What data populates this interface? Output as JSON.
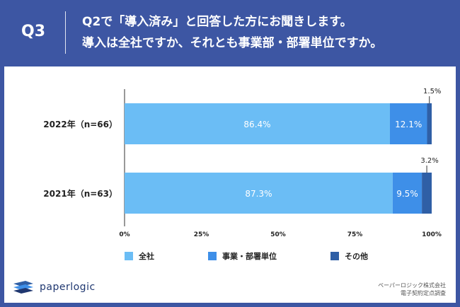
{
  "header": {
    "question_number": "Q3",
    "question_line1": "Q2で「導入済み」と回答した方にお聞きします。",
    "question_line2": "導入は全社ですか、それとも事業部・部署単位ですか。"
  },
  "chart_data": {
    "type": "bar",
    "orientation": "horizontal",
    "stacked": true,
    "percent": true,
    "categories": [
      "2022年（n=66）",
      "2021年（n=63）"
    ],
    "series": [
      {
        "name": "全社",
        "values": [
          86.4,
          87.3
        ],
        "labels": [
          "86.4%",
          "87.3%"
        ],
        "color": "#6bbdf5"
      },
      {
        "name": "事業・部署単位",
        "values": [
          12.1,
          9.5
        ],
        "labels": [
          "12.1%",
          "9.5%"
        ],
        "color": "#3e8fe8"
      },
      {
        "name": "その他",
        "values": [
          1.5,
          3.2
        ],
        "labels": [
          "1.5%",
          "3.2%"
        ],
        "color": "#2f5fa6"
      }
    ],
    "xlim": [
      0,
      100
    ],
    "ticks": [
      "0%",
      "25%",
      "50%",
      "75%",
      "100%"
    ],
    "tick_values": [
      0,
      25,
      50,
      75,
      100
    ],
    "legend_position": "bottom",
    "grid": false
  },
  "footer": {
    "logo_text": "paperlogic",
    "source_line1": "ペーパーロジック株式会社",
    "source_line2": "電子契約定点調査"
  }
}
